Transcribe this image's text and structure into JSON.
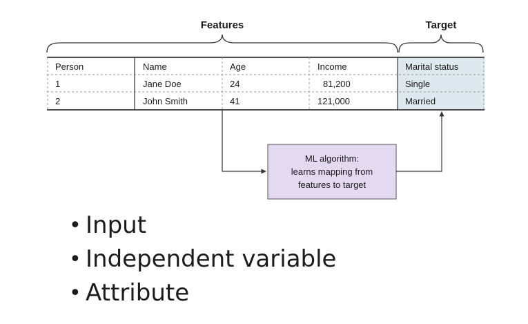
{
  "diagram": {
    "features_label": "Features",
    "target_label": "Target",
    "table": {
      "headers": [
        "Person",
        "Name",
        "Age",
        "Income",
        "Marital status"
      ],
      "rows": [
        [
          "1",
          "Jane Doe",
          "24",
          "81,200",
          "Single"
        ],
        [
          "2",
          "John Smith",
          "41",
          "121,000",
          "Married"
        ]
      ]
    },
    "ml_box": {
      "line1": "ML algorithm:",
      "line2": "learns mapping from",
      "line3": "features to target"
    },
    "colors": {
      "target_column_fill": "#dde9ef",
      "ml_box_fill": "#e3d9f0",
      "ml_box_border": "#6e6e6e",
      "line": "#333333"
    }
  },
  "bullets": [
    {
      "text": "Input"
    },
    {
      "text": "Independent variable"
    },
    {
      "text": "Attribute"
    }
  ]
}
